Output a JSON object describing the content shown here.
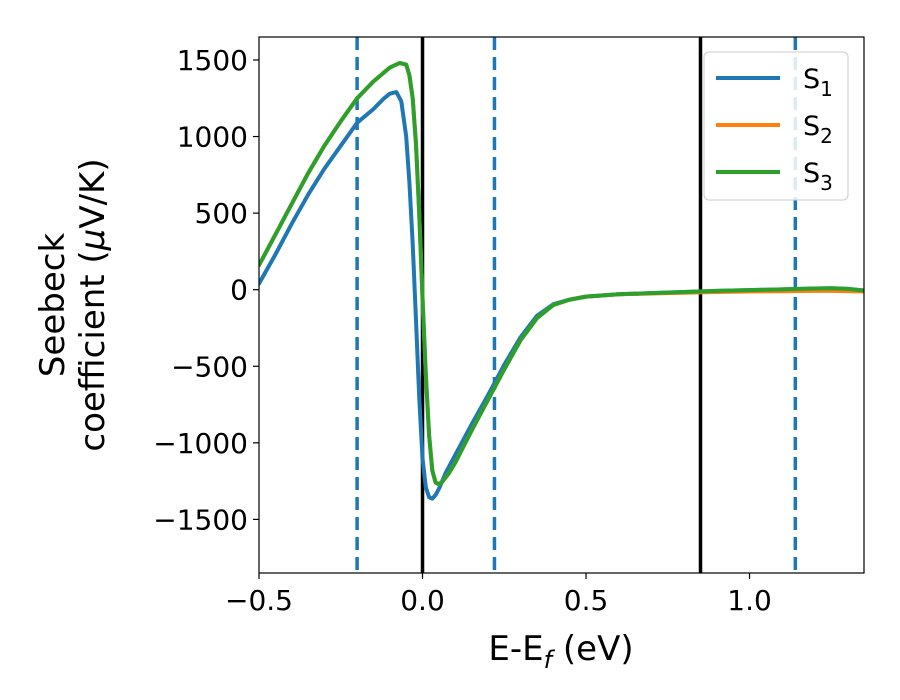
{
  "chart_data": {
    "type": "line",
    "xlabel": "E-E",
    "xlabel_sub": "f",
    "xlabel_unit": " (eV)",
    "ylabel_line1": "Seebeck",
    "ylabel_line2": "coefficient  (",
    "ylabel_mu": "μ",
    "ylabel_unit": "V/K)",
    "xlim": [
      -0.5,
      1.35
    ],
    "ylim": [
      -1850,
      1650
    ],
    "xticks": [
      {
        "v": -0.5,
        "label": "−0.5"
      },
      {
        "v": 0.0,
        "label": "0.0"
      },
      {
        "v": 0.5,
        "label": "0.5"
      },
      {
        "v": 1.0,
        "label": "1.0"
      }
    ],
    "yticks": [
      {
        "v": 1500,
        "label": "1500"
      },
      {
        "v": 1000,
        "label": "1000"
      },
      {
        "v": 500,
        "label": "500"
      },
      {
        "v": 0,
        "label": "0"
      },
      {
        "v": -500,
        "label": "−500"
      },
      {
        "v": -1000,
        "label": "−1000"
      },
      {
        "v": -1500,
        "label": "−1500"
      }
    ],
    "vlines_solid": [
      0.0,
      0.85
    ],
    "vlines_dashed": [
      -0.2,
      0.22,
      1.14
    ],
    "vline_solid_color": "#000000",
    "vline_dashed_color": "#1f77b4",
    "grid": false,
    "legend_position": "top-right",
    "series": [
      {
        "name": "S",
        "sub": "1",
        "color": "#1f77b4",
        "x": [
          -0.5,
          -0.45,
          -0.4,
          -0.35,
          -0.3,
          -0.25,
          -0.2,
          -0.15,
          -0.12,
          -0.1,
          -0.08,
          -0.065,
          -0.05,
          -0.04,
          -0.03,
          -0.02,
          -0.01,
          0.0,
          0.01,
          0.02,
          0.03,
          0.04,
          0.05,
          0.07,
          0.1,
          0.15,
          0.2,
          0.25,
          0.3,
          0.35,
          0.4,
          0.45,
          0.5,
          0.6,
          0.7,
          0.8,
          0.9,
          1.0,
          1.1,
          1.2,
          1.25,
          1.3,
          1.35
        ],
        "y": [
          40,
          230,
          430,
          620,
          790,
          940,
          1090,
          1180,
          1245,
          1280,
          1290,
          1230,
          1000,
          700,
          300,
          -200,
          -700,
          -1100,
          -1290,
          -1355,
          -1365,
          -1340,
          -1300,
          -1200,
          -1080,
          -880,
          -690,
          -490,
          -310,
          -170,
          -95,
          -65,
          -45,
          -30,
          -22,
          -15,
          -8,
          -3,
          2,
          8,
          10,
          5,
          -5
        ]
      },
      {
        "name": "S",
        "sub": "2",
        "color": "#ff7f0e",
        "x": [
          -0.5,
          -0.45,
          -0.4,
          -0.35,
          -0.3,
          -0.25,
          -0.2,
          -0.15,
          -0.1,
          -0.07,
          -0.05,
          -0.04,
          -0.03,
          -0.02,
          -0.01,
          0.0,
          0.01,
          0.02,
          0.03,
          0.04,
          0.05,
          0.06,
          0.08,
          0.1,
          0.15,
          0.2,
          0.25,
          0.3,
          0.35,
          0.4,
          0.45,
          0.5,
          0.6,
          0.7,
          0.8,
          0.9,
          1.0,
          1.1,
          1.2,
          1.25,
          1.3,
          1.35
        ],
        "y": [
          160,
          360,
          560,
          760,
          940,
          1100,
          1250,
          1360,
          1450,
          1480,
          1470,
          1400,
          1250,
          950,
          500,
          -50,
          -550,
          -950,
          -1180,
          -1260,
          -1270,
          -1255,
          -1200,
          -1130,
          -920,
          -720,
          -520,
          -330,
          -185,
          -100,
          -65,
          -45,
          -30,
          -25,
          -20,
          -15,
          -12,
          -10,
          -8,
          -8,
          -9,
          -12
        ]
      },
      {
        "name": "S",
        "sub": "3",
        "color": "#2ca02c",
        "x": [
          -0.5,
          -0.45,
          -0.4,
          -0.35,
          -0.3,
          -0.25,
          -0.2,
          -0.15,
          -0.1,
          -0.07,
          -0.05,
          -0.04,
          -0.03,
          -0.02,
          -0.01,
          0.0,
          0.01,
          0.02,
          0.03,
          0.04,
          0.05,
          0.06,
          0.08,
          0.1,
          0.15,
          0.2,
          0.25,
          0.3,
          0.35,
          0.4,
          0.45,
          0.5,
          0.6,
          0.7,
          0.8,
          0.9,
          1.0,
          1.1,
          1.2,
          1.25,
          1.3,
          1.35
        ],
        "y": [
          160,
          360,
          560,
          760,
          940,
          1100,
          1250,
          1360,
          1450,
          1480,
          1470,
          1400,
          1250,
          950,
          500,
          -50,
          -550,
          -950,
          -1180,
          -1260,
          -1270,
          -1255,
          -1200,
          -1130,
          -920,
          -720,
          -520,
          -330,
          -185,
          -100,
          -65,
          -45,
          -30,
          -22,
          -15,
          -8,
          -3,
          2,
          8,
          10,
          5,
          -5
        ]
      }
    ]
  }
}
